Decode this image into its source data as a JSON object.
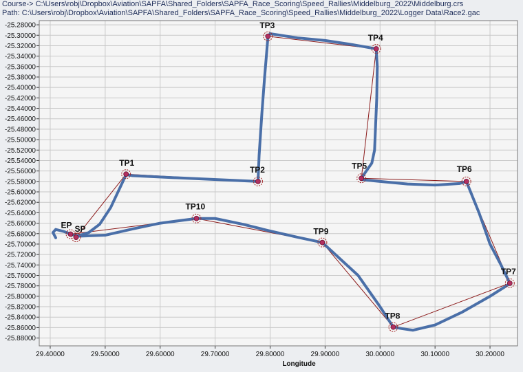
{
  "header": {
    "course_label": "Course->",
    "course_path": "C:\\Users\\robj\\Dropbox\\Aviation\\SAPFA\\Shared_Folders\\SAPFA_Race_Scoring\\Speed_Rallies\\Middelburg_2022\\Middelburg.crs",
    "path_label": "Path:",
    "path_value": "C:\\Users\\robj\\Dropbox\\Aviation\\SAPFA\\Shared_Folders\\SAPFA_Race_Scoring\\Speed_Rallies\\Middelburg_2022\\Logger Data\\Race2.gac"
  },
  "colors": {
    "track": "#4A6FA8",
    "course": "#8B1A1A",
    "marker_fill": "#B03060",
    "marker_ring": "#A02020",
    "plot_bg": "#F5F5F5",
    "grid": "#C8C8C8"
  },
  "chart_data": {
    "type": "line",
    "title": "",
    "xlabel": "Longitude",
    "ylabel": "",
    "xlim": [
      29.38,
      30.25
    ],
    "ylim": [
      -25.895,
      -25.272
    ],
    "grid": true,
    "x_ticks": [
      29.4,
      29.5,
      29.6,
      29.7,
      29.8,
      29.9,
      30.0,
      30.1,
      30.2
    ],
    "x_tick_labels": [
      "29.40000",
      "29.50000",
      "29.60000",
      "29.70000",
      "29.80000",
      "29.90000",
      "30.00000",
      "30.10000",
      "30.20000"
    ],
    "y_ticks": [
      -25.28,
      -25.3,
      -25.32,
      -25.34,
      -25.36,
      -25.38,
      -25.4,
      -25.42,
      -25.44,
      -25.46,
      -25.48,
      -25.5,
      -25.52,
      -25.54,
      -25.56,
      -25.58,
      -25.6,
      -25.62,
      -25.64,
      -25.66,
      -25.68,
      -25.7,
      -25.72,
      -25.74,
      -25.76,
      -25.78,
      -25.8,
      -25.82,
      -25.84,
      -25.86,
      -25.88
    ],
    "y_tick_labels": [
      "-25.28000",
      "-25.30000",
      "-25.32000",
      "-25.34000",
      "-25.36000",
      "-25.38000",
      "-25.40000",
      "-25.42000",
      "-25.44000",
      "-25.46000",
      "-25.48000",
      "-25.50000",
      "-25.52000",
      "-25.54000",
      "-25.56000",
      "-25.58000",
      "-25.60000",
      "-25.62000",
      "-25.64000",
      "-25.66000",
      "-25.68000",
      "-25.70000",
      "-25.72000",
      "-25.74000",
      "-25.76000",
      "-25.78000",
      "-25.80000",
      "-25.82000",
      "-25.84000",
      "-25.86000",
      "-25.88000"
    ],
    "turnpoints": [
      {
        "label": "SP",
        "lon": 29.447,
        "lat": -25.687
      },
      {
        "label": "TP1",
        "lon": 29.538,
        "lat": -25.566
      },
      {
        "label": "TP2",
        "lon": 29.778,
        "lat": -25.58
      },
      {
        "label": "TP3",
        "lon": 29.796,
        "lat": -25.302
      },
      {
        "label": "TP4",
        "lon": 29.993,
        "lat": -25.326
      },
      {
        "label": "TP5",
        "lon": 29.966,
        "lat": -25.574
      },
      {
        "label": "TP6",
        "lon": 30.157,
        "lat": -25.58
      },
      {
        "label": "TP7",
        "lon": 30.236,
        "lat": -25.775
      },
      {
        "label": "TP8",
        "lon": 30.024,
        "lat": -25.859
      },
      {
        "label": "TP9",
        "lon": 29.895,
        "lat": -25.697
      },
      {
        "label": "TP10",
        "lon": 29.666,
        "lat": -25.651
      },
      {
        "label": "EP",
        "lon": 29.437,
        "lat": -25.681
      }
    ],
    "series": [
      {
        "type": "course",
        "x": [
          29.447,
          29.538,
          29.778,
          29.796,
          29.993,
          29.966,
          30.157,
          30.236,
          30.024,
          29.895,
          29.666,
          29.437
        ],
        "y": [
          -25.687,
          -25.566,
          -25.58,
          -25.302,
          -25.326,
          -25.574,
          -25.58,
          -25.775,
          -25.859,
          -25.697,
          -25.651,
          -25.681
        ]
      },
      {
        "type": "track",
        "x": [
          29.41,
          29.405,
          29.41,
          29.425,
          29.435,
          29.44,
          29.452,
          29.47,
          29.49,
          29.51,
          29.538,
          29.55,
          29.65,
          29.778,
          29.78,
          29.785,
          29.79,
          29.796,
          29.8,
          29.85,
          29.9,
          29.95,
          29.993,
          29.995,
          29.994,
          29.992,
          29.99,
          29.985,
          29.975,
          29.966,
          29.97,
          30.0,
          30.05,
          30.1,
          30.145,
          30.157,
          30.18,
          30.2,
          30.22,
          30.236,
          30.23,
          30.2,
          30.15,
          30.1,
          30.06,
          30.04,
          30.024,
          30.0,
          29.96,
          29.895,
          29.85,
          29.8,
          29.75,
          29.7,
          29.666,
          29.6,
          29.55,
          29.5,
          29.475,
          29.45,
          29.437
        ],
        "y": [
          -25.688,
          -25.678,
          -25.672,
          -25.676,
          -25.68,
          -25.682,
          -25.684,
          -25.678,
          -25.662,
          -25.63,
          -25.567,
          -25.569,
          -25.574,
          -25.58,
          -25.53,
          -25.45,
          -25.38,
          -25.304,
          -25.297,
          -25.305,
          -25.31,
          -25.318,
          -25.326,
          -25.36,
          -25.42,
          -25.47,
          -25.52,
          -25.545,
          -25.56,
          -25.574,
          -25.577,
          -25.58,
          -25.585,
          -25.587,
          -25.584,
          -25.58,
          -25.64,
          -25.7,
          -25.74,
          -25.775,
          -25.78,
          -25.8,
          -25.83,
          -25.855,
          -25.865,
          -25.862,
          -25.859,
          -25.82,
          -25.76,
          -25.697,
          -25.687,
          -25.675,
          -25.662,
          -25.651,
          -25.651,
          -25.66,
          -25.671,
          -25.683,
          -25.684,
          -25.685,
          -25.681
        ]
      }
    ]
  }
}
